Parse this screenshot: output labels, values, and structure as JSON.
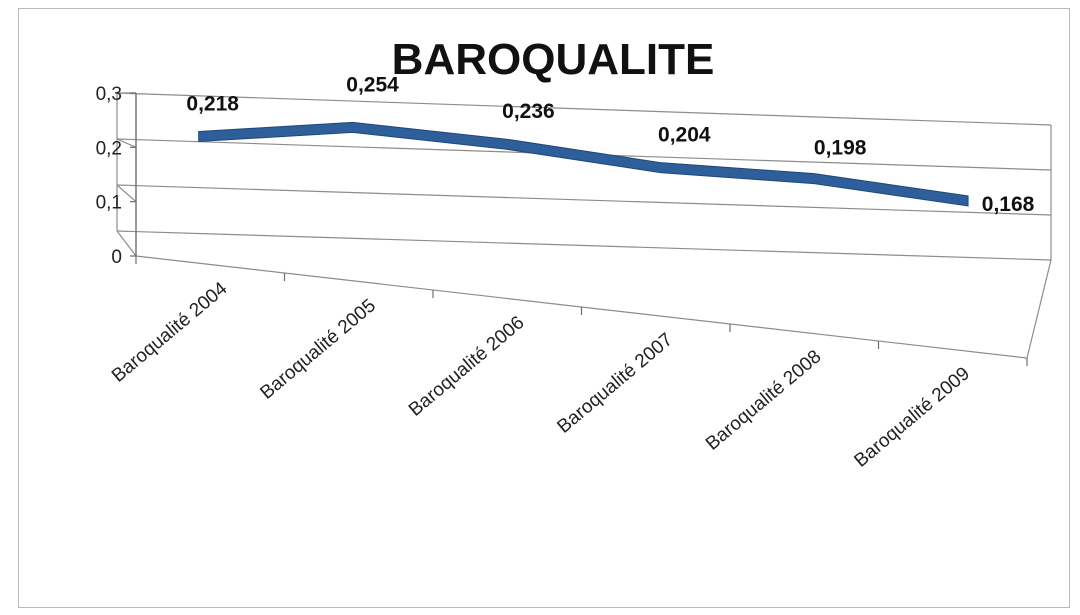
{
  "chart_data": {
    "type": "line",
    "title": "BAROQUALITE",
    "categories": [
      "Baroqualité 2004",
      "Baroqualité 2005",
      "Baroqualité 2006",
      "Baroqualité 2007",
      "Baroqualité 2008",
      "Baroqualité 2009"
    ],
    "series": [
      {
        "values": [
          0.218,
          0.254,
          0.236,
          0.204,
          0.198,
          0.168
        ]
      }
    ],
    "data_labels": [
      "0,218",
      "0,254",
      "0,236",
      "0,204",
      "0,198",
      "0,168"
    ],
    "y_ticks": [
      "0",
      "0,1",
      "0,2",
      "0,3"
    ],
    "ylim": [
      0,
      0.3
    ],
    "grid": true,
    "legend": "none",
    "style": "3d-line",
    "colors": {
      "line": "#2f5f9a",
      "line_edge": "#1f4878",
      "grid": "#8c8c8c"
    }
  }
}
